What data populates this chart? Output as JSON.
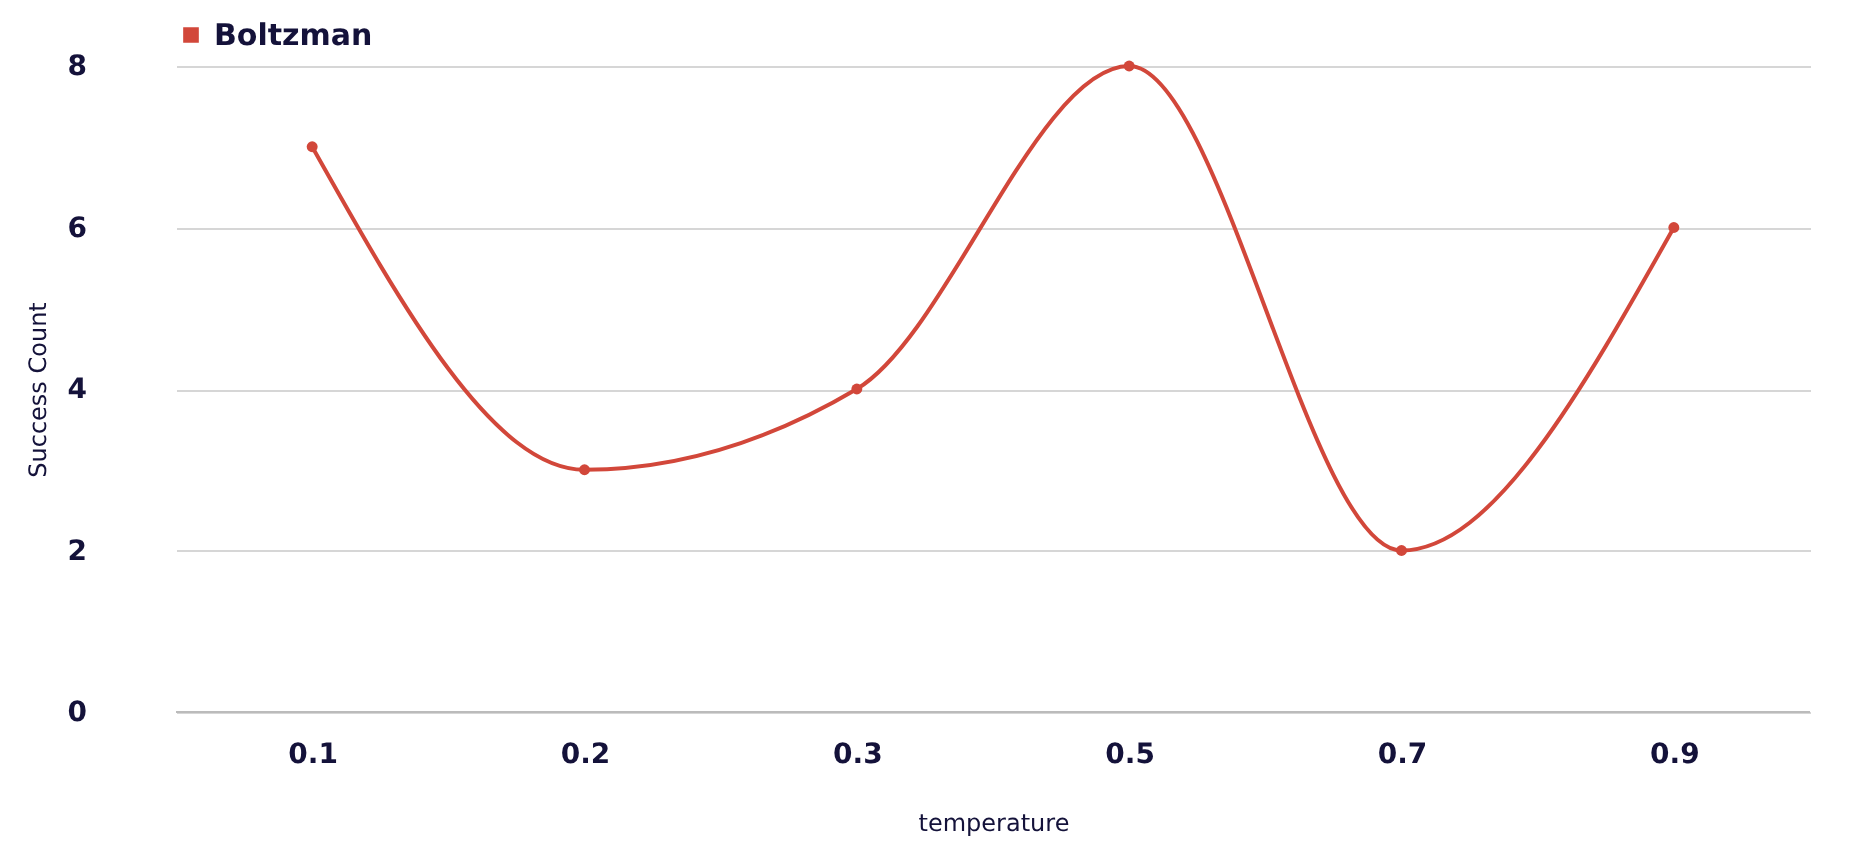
{
  "chart_data": {
    "type": "line",
    "xlabel": "temperature",
    "ylabel": "Success Count",
    "categories": [
      "0.1",
      "0.2",
      "0.3",
      "0.5",
      "0.7",
      "0.9"
    ],
    "series": [
      {
        "name": "Boltzman",
        "color": "#d2473a",
        "values": [
          7,
          3,
          4,
          8,
          2,
          6
        ]
      }
    ],
    "ylim": [
      0,
      8
    ],
    "yticks": [
      0,
      2,
      4,
      6,
      8
    ],
    "grid": "y",
    "legend": "top",
    "marker": "circle"
  }
}
